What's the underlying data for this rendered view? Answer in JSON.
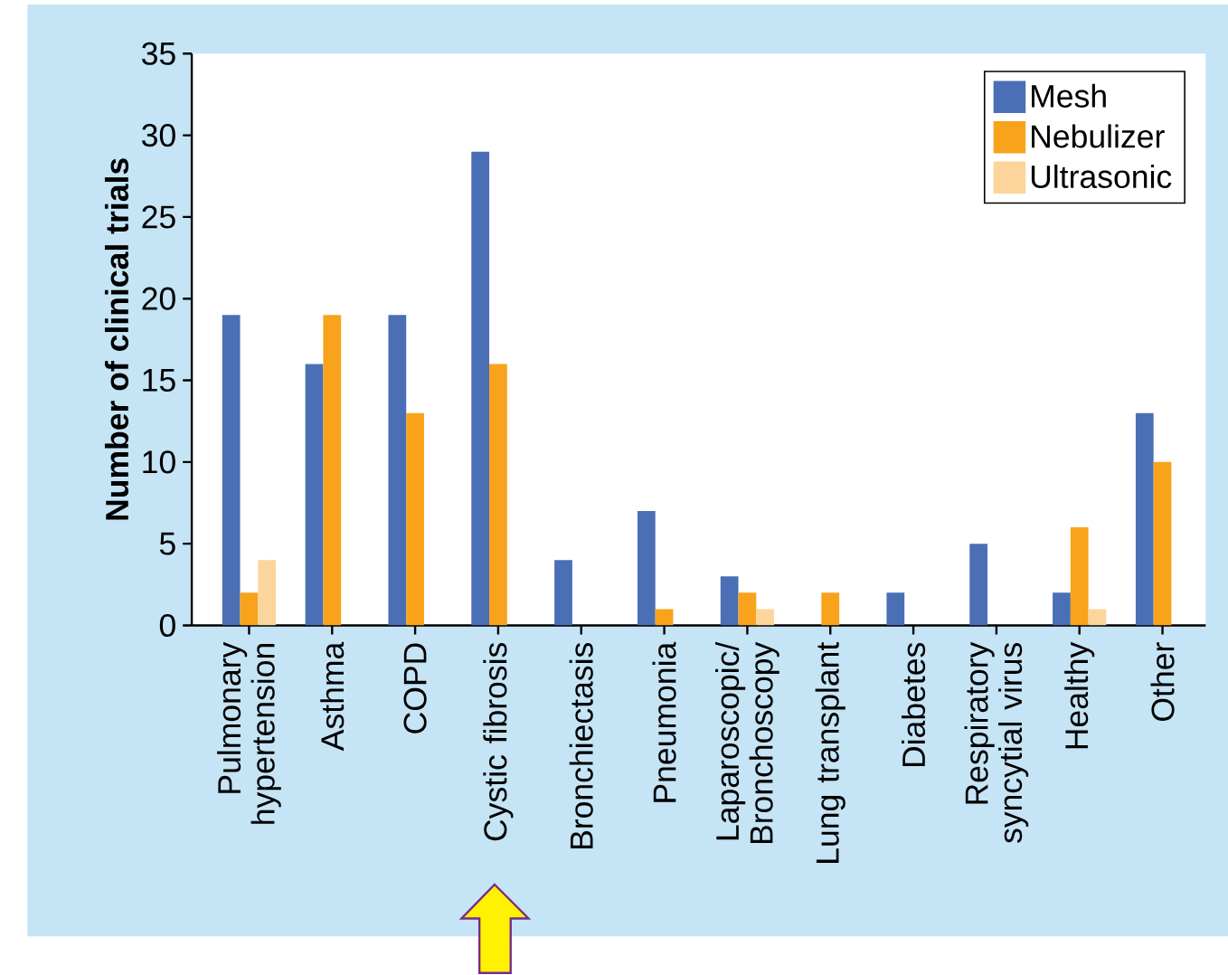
{
  "chart_data": {
    "type": "bar",
    "ylabel": "Number of clinical trials",
    "categories": [
      "Pulmonary hypertension",
      "Asthma",
      "COPD",
      "Cystic fibrosis",
      "Bronchiectasis",
      "Pneumonia",
      "Laparoscopic/ Bronchoscopy",
      "Lung transplant",
      "Diabetes",
      "Respiratory syncytial virus",
      "Healthy",
      "Other"
    ],
    "series": [
      {
        "name": "Mesh",
        "color": "#4a6fb5",
        "values": [
          19,
          16,
          19,
          29,
          4,
          7,
          3,
          0,
          2,
          5,
          2,
          13
        ]
      },
      {
        "name": "Nebulizer",
        "color": "#f8a31b",
        "values": [
          2,
          19,
          13,
          16,
          0,
          1,
          2,
          2,
          0,
          0,
          6,
          10
        ]
      },
      {
        "name": "Ultrasonic",
        "color": "#fbd59b",
        "values": [
          4,
          0,
          0,
          0,
          0,
          0,
          1,
          0,
          0,
          0,
          1,
          0
        ]
      }
    ],
    "ylim": [
      0,
      35
    ],
    "yticks": [
      0,
      5,
      10,
      15,
      20,
      25,
      30,
      35
    ],
    "legend": "top right"
  }
}
